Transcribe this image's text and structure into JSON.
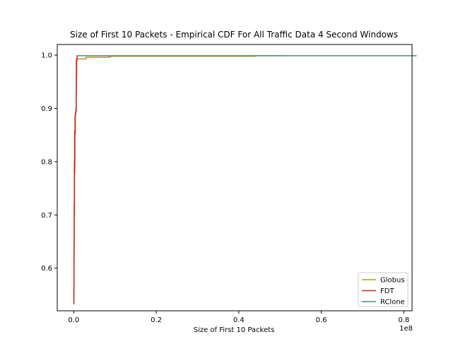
{
  "chart_data": {
    "type": "line",
    "title": "Size of First 10 Packets - Empirical CDF For All Traffic Data 4 Second Windows",
    "xlabel": "Size of First 10 Packets",
    "ylabel": "",
    "x_offset_label": "1e8",
    "xlim": [
      -0.04,
      0.82
    ],
    "ylim": [
      0.52,
      1.02
    ],
    "x_ticks": [
      0.0,
      0.2,
      0.4,
      0.6,
      0.8
    ],
    "x_tick_labels": [
      "0.0",
      "0.2",
      "0.4",
      "0.6",
      "0.8"
    ],
    "y_ticks": [
      0.6,
      0.7,
      0.8,
      0.9,
      1.0
    ],
    "y_tick_labels": [
      "0.6",
      "0.7",
      "0.8",
      "0.9",
      "1.0"
    ],
    "grid": false,
    "legend_position": "lower-right",
    "series": [
      {
        "name": "Globus",
        "color": "#d08a1a",
        "x": [
          0.0,
          0.0005,
          0.001,
          0.002,
          0.003,
          0.004,
          0.005,
          0.006,
          0.0065,
          0.007,
          0.01,
          0.02,
          0.028,
          0.03,
          0.08,
          0.085,
          0.09,
          0.43,
          0.44,
          0.505,
          0.51
        ],
        "y": [
          0.54,
          0.62,
          0.7,
          0.78,
          0.85,
          0.89,
          0.9,
          0.99,
          0.993,
          0.993,
          0.993,
          0.993,
          0.993,
          0.996,
          0.996,
          0.997,
          0.998,
          0.998,
          0.999,
          0.999,
          1.0
        ]
      },
      {
        "name": "FDT",
        "color": "#c0282d",
        "x": [
          0.0,
          0.0003,
          0.0006,
          0.001,
          0.0015,
          0.002,
          0.0025,
          0.003,
          0.0035,
          0.004,
          0.0045,
          0.005,
          0.006,
          0.0065,
          0.007,
          0.008
        ],
        "y": [
          0.533,
          0.56,
          0.64,
          0.72,
          0.8,
          0.855,
          0.858,
          0.885,
          0.887,
          0.889,
          0.892,
          0.894,
          0.93,
          0.96,
          0.99,
          1.0
        ]
      },
      {
        "name": "RClone",
        "color": "#3a9a6e",
        "x": [
          0.007,
          0.05,
          0.1,
          0.2,
          0.4,
          0.6,
          0.8,
          0.81,
          0.83
        ],
        "y": [
          0.999,
          0.999,
          0.999,
          0.999,
          0.999,
          0.999,
          0.999,
          0.999,
          1.0
        ]
      }
    ]
  }
}
